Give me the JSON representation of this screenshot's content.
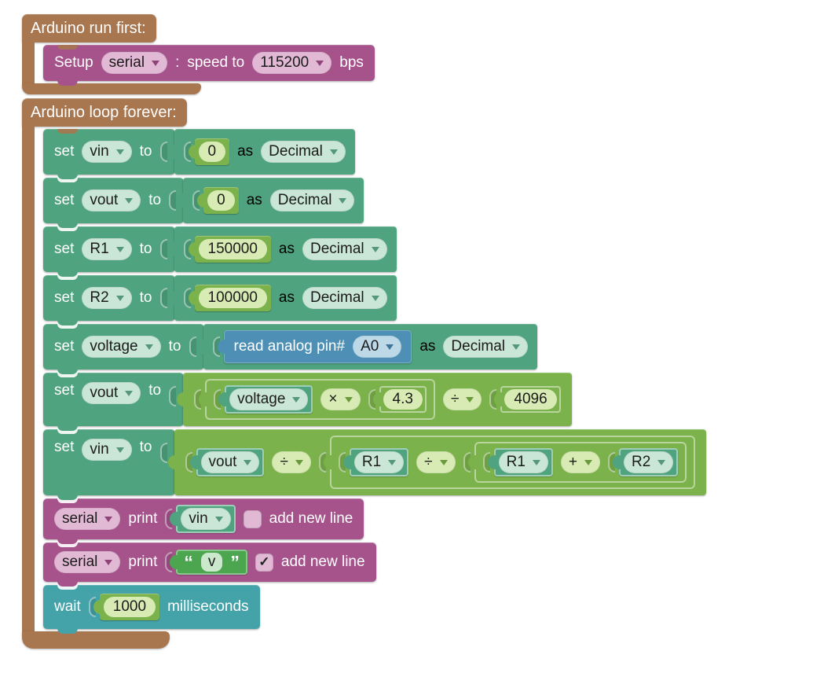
{
  "colors": {
    "container": "#A8764F",
    "serial": "#A6538C",
    "variables": "#4FA47F",
    "math": "#7CB24B",
    "text": "#4BA64F",
    "analog_io": "#4E90B5",
    "time": "#43A3A9",
    "field_pink": "#E2B9D5",
    "field_mint": "#C9E6D6",
    "field_lime": "#D8EBB4",
    "field_blue": "#BDD9E8"
  },
  "run_first": {
    "title": "Arduino run first:",
    "setup": {
      "label": "Setup",
      "port": "serial",
      "colon": ":",
      "speed_label": "speed to",
      "speed": "115200",
      "bps": "bps"
    }
  },
  "loop": {
    "title": "Arduino loop forever:",
    "sets": [
      {
        "set": "set",
        "var": "vin",
        "to": "to",
        "value": "0",
        "as": "as",
        "type": "Decimal"
      },
      {
        "set": "set",
        "var": "vout",
        "to": "to",
        "value": "0",
        "as": "as",
        "type": "Decimal"
      },
      {
        "set": "set",
        "var": "R1",
        "to": "to",
        "value": "150000",
        "as": "as",
        "type": "Decimal"
      },
      {
        "set": "set",
        "var": "R2",
        "to": "to",
        "value": "100000",
        "as": "as",
        "type": "Decimal"
      }
    ],
    "analog": {
      "set": "set",
      "var": "voltage",
      "to": "to",
      "read_label": "read analog pin#",
      "pin": "A0",
      "as": "as",
      "type": "Decimal"
    },
    "vout_expr": {
      "set": "set",
      "var": "vout",
      "to": "to",
      "a": "voltage",
      "op1": "×",
      "b": "4.3",
      "op2": "÷",
      "c": "4096"
    },
    "vin_expr": {
      "set": "set",
      "var": "vin",
      "to": "to",
      "a": "vout",
      "op1": "÷",
      "b": "R1",
      "op2": "÷",
      "c": "R1",
      "op3": "+",
      "d": "R2"
    },
    "prints": [
      {
        "port": "serial",
        "print": "print",
        "value": "vin",
        "newline": "add new line",
        "checked": false,
        "check_glyph": ""
      },
      {
        "port": "serial",
        "print": "print",
        "quote_open": "“",
        "value": "v",
        "quote_close": "”",
        "newline": "add new line",
        "checked": true,
        "check_glyph": "✓"
      }
    ],
    "wait": {
      "label": "wait",
      "value": "1000",
      "unit": "milliseconds"
    }
  }
}
